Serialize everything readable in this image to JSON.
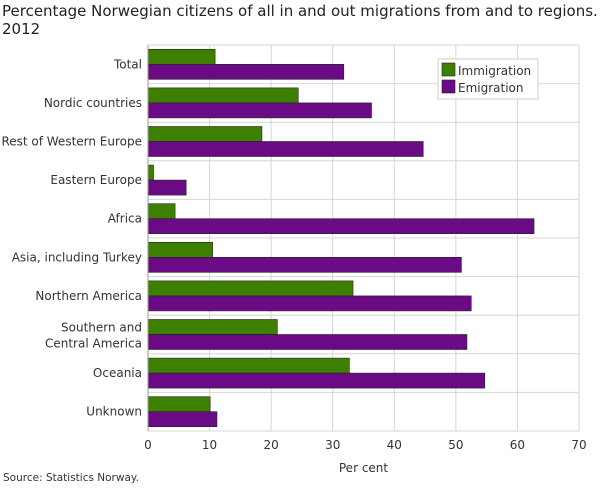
{
  "chart_data": {
    "type": "bar",
    "orientation": "horizontal",
    "title": "Percentage Norwegian citizens of all in and out migrations from and to regions. 2012",
    "xlabel": "Per cent",
    "ylabel": "",
    "xlim": [
      0,
      70
    ],
    "xticks": [
      0,
      10,
      20,
      30,
      40,
      50,
      60,
      70
    ],
    "grid": true,
    "legend_position": "top-right",
    "categories": [
      "Total",
      "Nordic countries",
      "Rest of Western Europe",
      "Eastern Europe",
      "Africa",
      "Asia, including Turkey",
      "Northern America",
      "Southern and Central America",
      "Oceania",
      "Unknown"
    ],
    "series": [
      {
        "name": "Immigration",
        "color": "#3d8000",
        "values": [
          10.9,
          24.4,
          18.5,
          0.9,
          4.4,
          10.5,
          33.3,
          21.0,
          32.7,
          10.1
        ]
      },
      {
        "name": "Emigration",
        "color": "#6a0a85",
        "values": [
          31.8,
          36.3,
          44.7,
          6.2,
          62.7,
          50.9,
          52.5,
          51.8,
          54.7,
          11.2
        ]
      }
    ],
    "source": "Source: Statistics Norway."
  }
}
